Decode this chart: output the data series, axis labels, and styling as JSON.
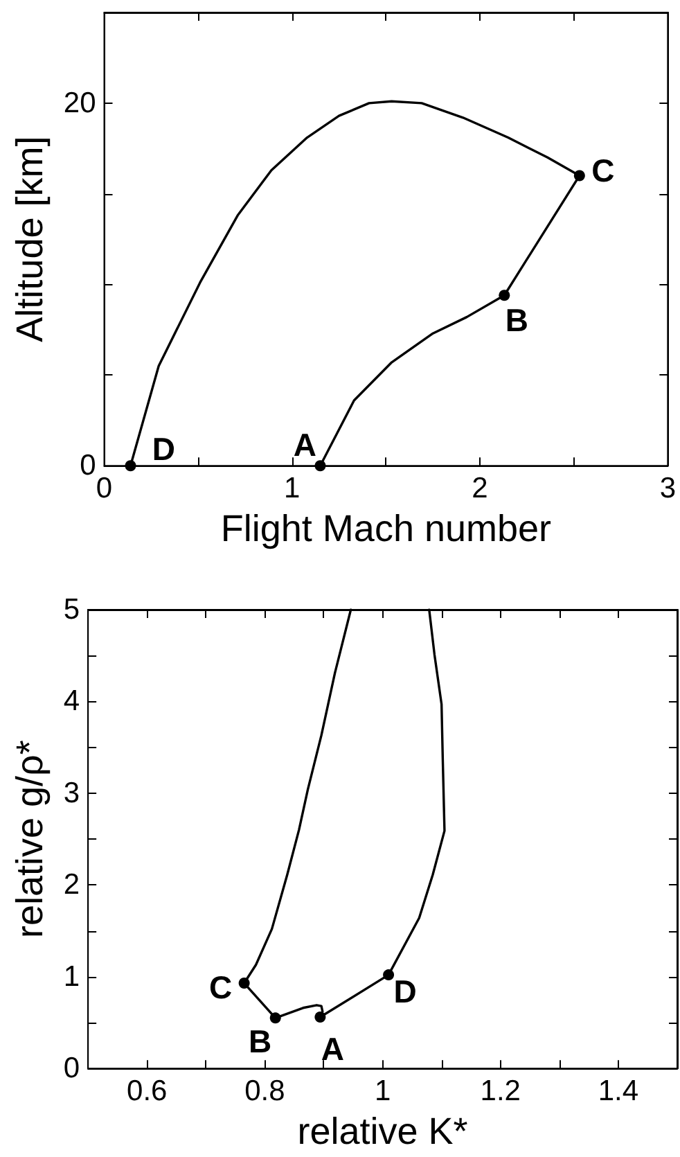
{
  "chart_data": [
    {
      "type": "line",
      "xlabel": "Flight Mach number",
      "ylabel": "Altitude [km]",
      "xlim": [
        0,
        3
      ],
      "ylim": [
        0,
        25
      ],
      "xticks": [
        0,
        {
          "value": 0.5,
          "label": null
        },
        1,
        {
          "value": 1.5,
          "label": null
        },
        2,
        {
          "value": 2.5,
          "label": null
        },
        3
      ],
      "yticks": [
        0,
        {
          "value": 5,
          "label": null
        },
        {
          "value": 10,
          "label": null
        },
        {
          "value": 15,
          "label": null
        },
        20,
        {
          "value": 25,
          "label": null
        }
      ],
      "line_style": "solid",
      "series": [
        {
          "color": "#000000",
          "marker": "none",
          "x": [
            1.15,
            1.33,
            1.53,
            1.75,
            1.93,
            2.13,
            2.53,
            2.36,
            2.15,
            1.91,
            1.69,
            1.53,
            1.41,
            1.25,
            1.08,
            0.89,
            0.71,
            0.51,
            0.29,
            0.14
          ],
          "values": [
            0,
            3.6,
            5.7,
            7.3,
            8.2,
            9.4,
            16.0,
            17.0,
            18.1,
            19.2,
            20.0,
            20.1,
            20.0,
            19.3,
            18.1,
            16.3,
            13.8,
            10.1,
            5.5,
            0
          ]
        },
        {
          "type": "scatter",
          "color": "#000000",
          "marker": "circle",
          "x": [
            1.15,
            2.13,
            2.53,
            0.14
          ],
          "values": [
            0,
            9.4,
            16.0,
            0
          ]
        }
      ],
      "annotations": [
        {
          "text": "A",
          "x": 1.15,
          "y": 0
        },
        {
          "text": "B",
          "x": 2.13,
          "y": 9.4
        },
        {
          "text": "C",
          "x": 2.53,
          "y": 16.0
        },
        {
          "text": "D",
          "x": 0.14,
          "y": 0
        }
      ]
    },
    {
      "type": "line",
      "xlabel": "relative K*",
      "ylabel": "relative g/ρ*",
      "xlim": [
        0.5,
        1.5
      ],
      "ylim": [
        0,
        5
      ],
      "xticks": [
        {
          "value": 0.5,
          "label": null
        },
        0.6,
        {
          "value": 0.7,
          "label": null
        },
        0.8,
        {
          "value": 0.9,
          "label": null
        },
        1,
        {
          "value": 1.1,
          "label": null
        },
        1.2,
        {
          "value": 1.3,
          "label": null
        },
        1.4,
        {
          "value": 1.5,
          "label": null
        }
      ],
      "yticks": [
        0,
        {
          "value": 0.5,
          "label": null
        },
        1,
        {
          "value": 1.5,
          "label": null
        },
        2,
        {
          "value": 2.5,
          "label": null
        },
        3,
        {
          "value": 3.5,
          "label": null
        },
        4,
        {
          "value": 4.5,
          "label": null
        },
        5
      ],
      "line_style": "solid",
      "series": [
        {
          "color": "#000000",
          "marker": "none",
          "x": [
            0.946,
            0.919,
            0.896,
            0.873,
            0.858,
            0.838,
            0.812,
            0.785,
            0.765,
            0.818,
            0.865,
            0.888,
            0.896,
            0.898,
            0.894,
            1.01,
            1.062,
            1.085,
            1.105,
            1.102,
            1.1,
            1.088,
            1.079
          ],
          "values": [
            5,
            4.31,
            3.63,
            3.04,
            2.6,
            2.11,
            1.52,
            1.13,
            0.93,
            0.55,
            0.66,
            0.69,
            0.68,
            0.62,
            0.56,
            1.02,
            1.64,
            2.11,
            2.59,
            3.38,
            3.97,
            4.51,
            5
          ]
        },
        {
          "type": "scatter",
          "color": "#000000",
          "marker": "circle",
          "x": [
            0.765,
            0.818,
            0.894,
            1.01
          ],
          "values": [
            0.93,
            0.55,
            0.56,
            1.02
          ]
        }
      ],
      "annotations": [
        {
          "text": "A",
          "x": 0.894,
          "y": 0.56
        },
        {
          "text": "B",
          "x": 0.818,
          "y": 0.55
        },
        {
          "text": "C",
          "x": 0.765,
          "y": 0.93
        },
        {
          "text": "D",
          "x": 1.01,
          "y": 1.02
        }
      ]
    }
  ]
}
